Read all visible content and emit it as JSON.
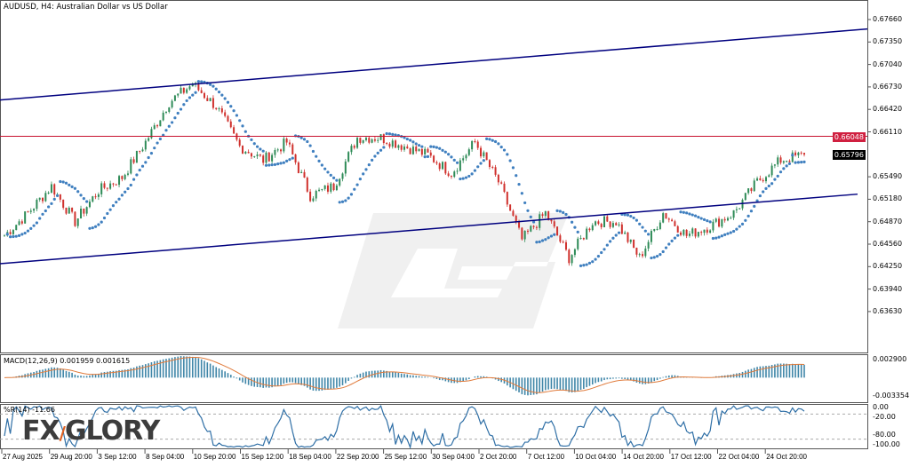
{
  "header": {
    "title": "AUDUSD, H4:  Australian Dollar vs US Dollar"
  },
  "colors": {
    "bull": "#2e8b57",
    "bear": "#d0312d",
    "sar": "#3f7fbf",
    "channel": "#00007f",
    "hline": "#c8102e",
    "macd_hist": "#3f86a8",
    "macd_signal": "#e07a3a",
    "wpr": "#2f6fa6"
  },
  "price_axis": {
    "labels": [
      "0.67660",
      "0.67350",
      "0.67040",
      "0.66730",
      "0.66420",
      "0.66110",
      "0.65490",
      "0.65180",
      "0.64870",
      "0.64560",
      "0.64250",
      "0.63940",
      "0.63630"
    ]
  },
  "tags": {
    "hline_price": "0.66048",
    "last_price": "0.65796"
  },
  "time_axis": {
    "labels": [
      "27 Aug 2025",
      "29 Aug 20:00",
      "3 Sep 12:00",
      "8 Sep 04:00",
      "10 Sep 20:00",
      "15 Sep 12:00",
      "18 Sep 04:00",
      "22 Sep 20:00",
      "25 Sep 12:00",
      "30 Sep 04:00",
      "2 Oct 20:00",
      "7 Oct 12:00",
      "10 Oct 04:00",
      "14 Oct 20:00",
      "17 Oct 12:00",
      "22 Oct 04:00",
      "24 Oct 20:00"
    ]
  },
  "macd": {
    "label": "MACD(12,26,9) 0.001959 0.001615",
    "axis": [
      "0.002900",
      "-0.003354"
    ]
  },
  "wpr": {
    "label": "%R(14) -11.66",
    "axis": [
      "0.00",
      "-20.00",
      "-80.00",
      "-100.00"
    ]
  },
  "logo": {
    "text": "FXGLORY"
  },
  "chart_data": {
    "type": "candlestick",
    "symbol": "AUDUSD",
    "timeframe": "H4",
    "close_path": [
      0.6468,
      0.6499,
      0.6536,
      0.6487,
      0.653,
      0.6548,
      0.6597,
      0.6652,
      0.6677,
      0.6646,
      0.6591,
      0.6572,
      0.6597,
      0.6523,
      0.6536,
      0.6603,
      0.6603,
      0.6591,
      0.6579,
      0.6554,
      0.6597,
      0.6542,
      0.6462,
      0.6499,
      0.6437,
      0.6487,
      0.6487,
      0.6437,
      0.6499,
      0.6468,
      0.6481,
      0.6499,
      0.6542,
      0.6572,
      0.65796
    ],
    "ylim": [
      0.635,
      0.6785
    ],
    "horizontal_line": 0.66048,
    "channel_upper": [
      0.6655,
      0.6753
    ],
    "channel_lower": [
      0.6429,
      0.6525
    ]
  }
}
